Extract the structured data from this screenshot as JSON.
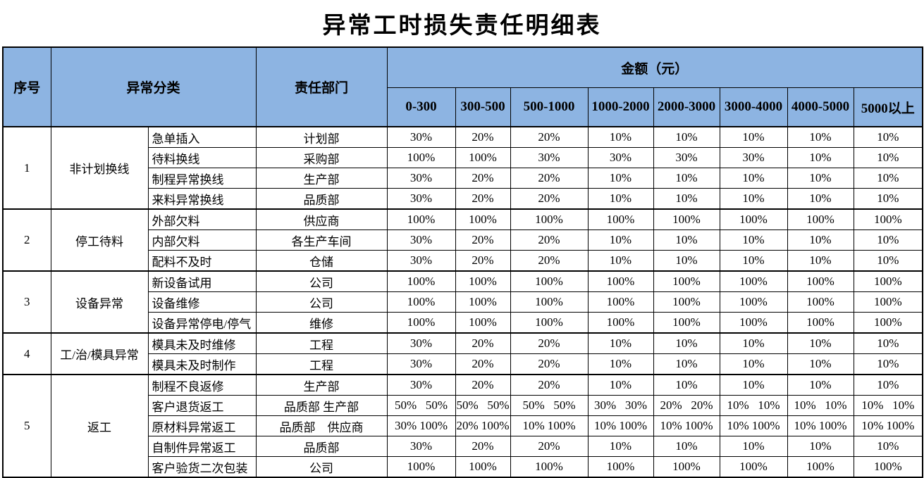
{
  "title": "异常工时损失责任明细表",
  "colors": {
    "header_bg": "#8DB4E2",
    "border": "#000000"
  },
  "table": {
    "headers": {
      "no": "序号",
      "category": "异常分类",
      "dept": "责任部门",
      "amount_group": "金额（元）",
      "ranges": [
        "0-300",
        "300-500",
        "500-1000",
        "1000-2000",
        "2000-3000",
        "3000-4000",
        "4000-5000",
        "5000以上"
      ]
    },
    "groups": [
      {
        "no": "1",
        "category": "非计划换线",
        "rows": [
          {
            "sub": "急单插入",
            "dept": "计划部",
            "values": [
              "30%",
              "20%",
              "20%",
              "10%",
              "10%",
              "10%",
              "10%",
              "10%"
            ]
          },
          {
            "sub": "待料换线",
            "dept": "采购部",
            "values": [
              "100%",
              "100%",
              "30%",
              "30%",
              "30%",
              "30%",
              "10%",
              "10%"
            ]
          },
          {
            "sub": "制程异常换线",
            "dept": "生产部",
            "values": [
              "30%",
              "20%",
              "20%",
              "10%",
              "10%",
              "10%",
              "10%",
              "10%"
            ]
          },
          {
            "sub": "来料异常换线",
            "dept": "品质部",
            "values": [
              "30%",
              "20%",
              "20%",
              "10%",
              "10%",
              "10%",
              "10%",
              "10%"
            ]
          }
        ]
      },
      {
        "no": "2",
        "category": "停工待料",
        "rows": [
          {
            "sub": "外部欠料",
            "dept": "供应商",
            "values": [
              "100%",
              "100%",
              "100%",
              "100%",
              "100%",
              "100%",
              "100%",
              "100%"
            ]
          },
          {
            "sub": "内部欠料",
            "dept": "各生产车间",
            "values": [
              "30%",
              "20%",
              "20%",
              "10%",
              "10%",
              "10%",
              "10%",
              "10%"
            ]
          },
          {
            "sub": "配料不及时",
            "dept": "仓储",
            "values": [
              "30%",
              "20%",
              "20%",
              "10%",
              "10%",
              "10%",
              "10%",
              "10%"
            ]
          }
        ]
      },
      {
        "no": "3",
        "category": "设备异常",
        "rows": [
          {
            "sub": "新设备试用",
            "dept": "公司",
            "values": [
              "100%",
              "100%",
              "100%",
              "100%",
              "100%",
              "100%",
              "100%",
              "100%"
            ]
          },
          {
            "sub": "设备维修",
            "dept": "公司",
            "values": [
              "100%",
              "100%",
              "100%",
              "100%",
              "100%",
              "100%",
              "100%",
              "100%"
            ]
          },
          {
            "sub": "设备异常停电/停气",
            "dept": "维修",
            "values": [
              "100%",
              "100%",
              "100%",
              "100%",
              "100%",
              "100%",
              "100%",
              "100%"
            ]
          }
        ]
      },
      {
        "no": "4",
        "category": "工/治/模具异常",
        "rows": [
          {
            "sub": "模具未及时维修",
            "dept": "工程",
            "values": [
              "30%",
              "20%",
              "20%",
              "10%",
              "10%",
              "10%",
              "10%",
              "10%"
            ]
          },
          {
            "sub": "模具未及时制作",
            "dept": "工程",
            "values": [
              "30%",
              "20%",
              "20%",
              "10%",
              "10%",
              "10%",
              "10%",
              "10%"
            ]
          }
        ]
      },
      {
        "no": "5",
        "category": "返工",
        "rows": [
          {
            "sub": "制程不良返修",
            "dept": "生产部",
            "values": [
              "30%",
              "20%",
              "20%",
              "10%",
              "10%",
              "10%",
              "10%",
              "10%"
            ]
          },
          {
            "sub": "客户退货返工",
            "dept": "品质部 生产部",
            "values": [
              "50%   50%",
              "50%   50%",
              "50%   50%",
              "30%   30%",
              "20%   20%",
              "10%   10%",
              "10%   10%",
              "10%   10%"
            ]
          },
          {
            "sub": "原材料异常返工",
            "dept": "品质部　供应商",
            "values": [
              "30% 100%",
              "20% 100%",
              "10% 100%",
              "10% 100%",
              "10% 100%",
              "10% 100%",
              "10% 100%",
              "10% 100%"
            ]
          },
          {
            "sub": "自制件异常返工",
            "dept": "品质部",
            "values": [
              "30%",
              "20%",
              "20%",
              "10%",
              "10%",
              "10%",
              "10%",
              "10%"
            ]
          },
          {
            "sub": "客户验货二次包装",
            "dept": "公司",
            "values": [
              "100%",
              "100%",
              "100%",
              "100%",
              "100%",
              "100%",
              "100%",
              "100%"
            ]
          }
        ]
      }
    ]
  }
}
